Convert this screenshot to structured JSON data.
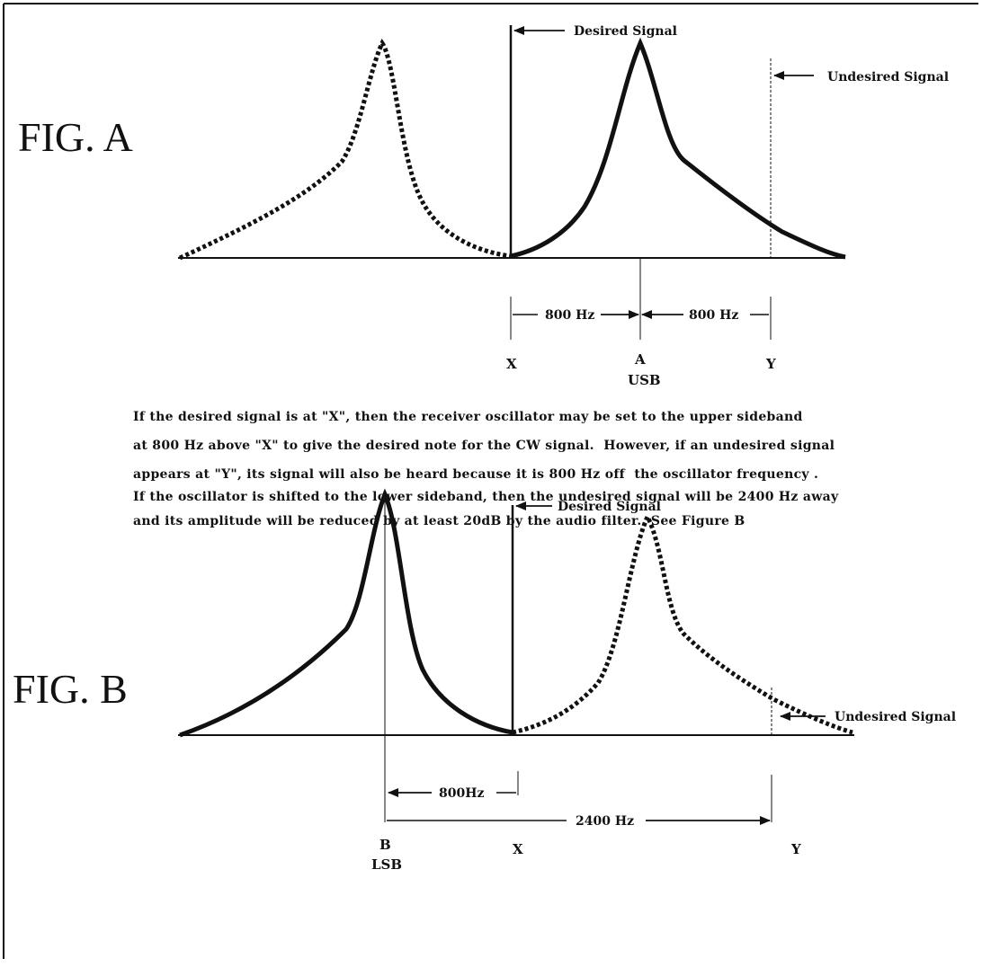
{
  "fig_a": {
    "label": "FIG. A",
    "desired_signal": "Desired Signal",
    "undesired_signal": "Undesired Signal",
    "dim_left": "800 Hz",
    "dim_right": "800 Hz",
    "point_x": "X",
    "point_a": "A",
    "point_y": "Y",
    "sideband": "USB"
  },
  "explanation": [
    "If the desired signal is at \"X\", then the receiver oscillator may be set to the upper sideband",
    "at 800 Hz above \"X\" to give the desired note for the CW signal.  However, if an undesired signal",
    "appears at \"Y\", its signal will also be heard because it is 800 Hz off  the oscillator frequency .",
    "If the oscillator is shifted to the lower sideband, then the undesired signal will be 2400 Hz away",
    "and its amplitude will be reduced by at least 20dB by the audio filter.  See Figure B"
  ],
  "fig_b": {
    "label": "FIG. B",
    "desired_signal": "Desired Signal",
    "undesired_signal": "Undesired Signal",
    "dim_short": "800Hz",
    "dim_long": "2400 Hz",
    "point_b": "B",
    "point_x": "X",
    "point_y": "Y",
    "sideband": "LSB"
  },
  "colors": {
    "ink": "#111111",
    "background": "#ffffff"
  }
}
